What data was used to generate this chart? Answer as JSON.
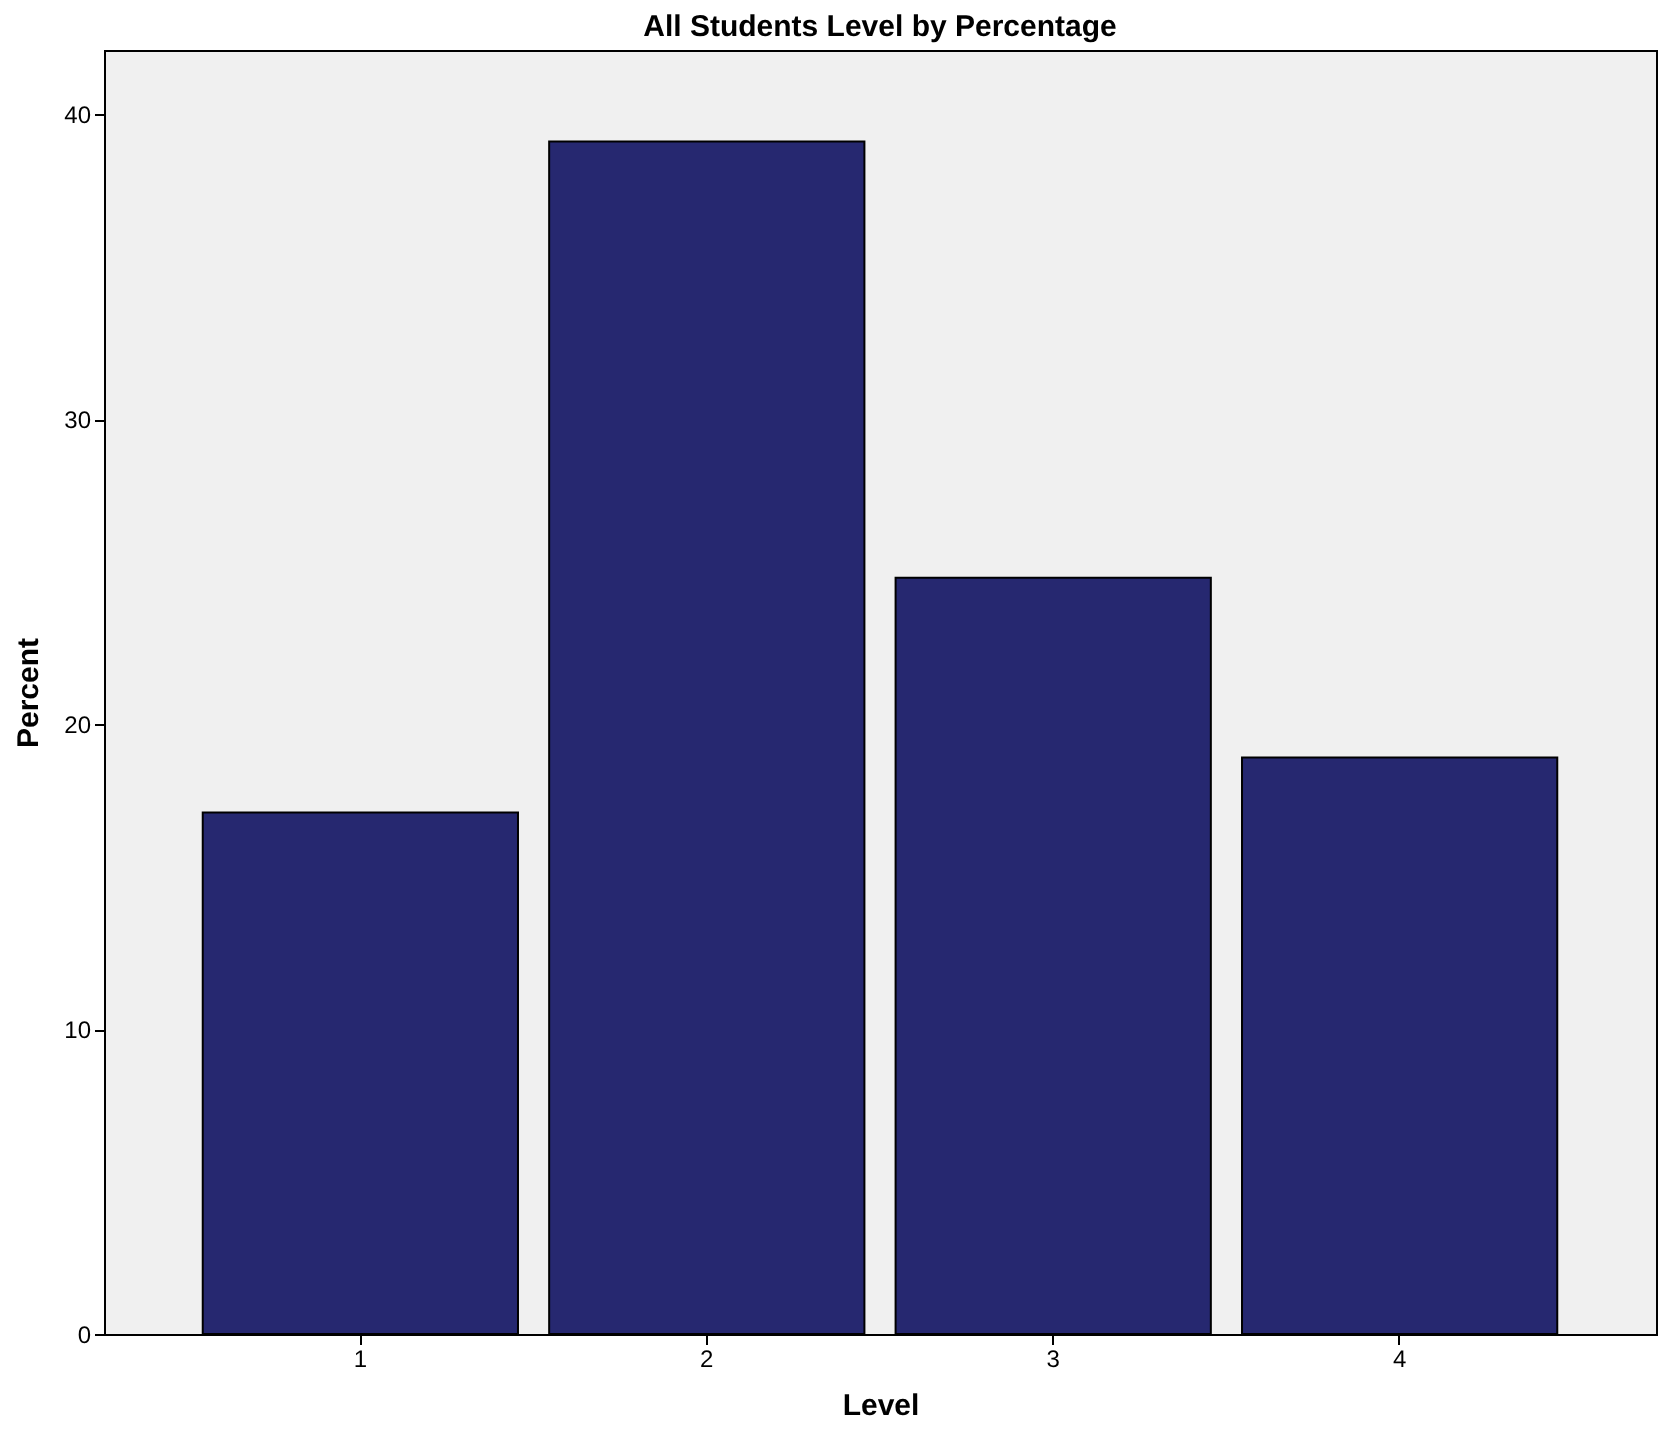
{
  "chart_data": {
    "type": "bar",
    "title": "All Students Level by Percentage",
    "xlabel": "Level",
    "ylabel": "Percent",
    "categories": [
      "1",
      "2",
      "3",
      "4"
    ],
    "values": [
      17.1,
      39.1,
      24.8,
      18.9
    ],
    "color": "#262870",
    "ylim": [
      0,
      42.1
    ],
    "yticks": [
      0,
      10,
      20,
      30,
      40
    ],
    "grid": false
  }
}
